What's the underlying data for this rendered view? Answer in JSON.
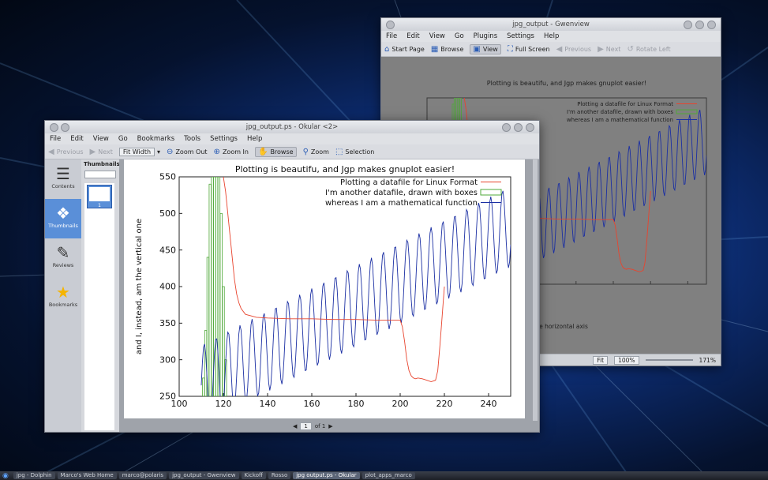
{
  "gwenview": {
    "title": "jpg_output - Gwenview",
    "menu": [
      "File",
      "Edit",
      "View",
      "Go",
      "Plugins",
      "Settings",
      "Help"
    ],
    "toolbar": [
      {
        "label": "Start Page",
        "icon": "home-icon"
      },
      {
        "label": "Browse",
        "icon": "grid-icon"
      },
      {
        "label": "View",
        "icon": "image-icon"
      },
      {
        "label": "Full Screen",
        "icon": "fullscreen-icon"
      },
      {
        "label": "Previous",
        "icon": "previous-icon"
      },
      {
        "label": "Next",
        "icon": "next-icon"
      },
      {
        "label": "Rotate Left",
        "icon": "rotate-left-icon"
      }
    ],
    "status": {
      "fit": "Fit",
      "zoom_value": "100%",
      "zoom_pct": "171%"
    },
    "xlabel_fragment": "am the horizontal axis"
  },
  "okular": {
    "title": "jpg_output.ps - Okular <2>",
    "menu": [
      "File",
      "Edit",
      "View",
      "Go",
      "Bookmarks",
      "Tools",
      "Settings",
      "Help"
    ],
    "toolbar": {
      "previous": "Previous",
      "next": "Next",
      "fit_width": "Fit Width",
      "zoom_out": "Zoom Out",
      "zoom_in": "Zoom In",
      "browse": "Browse",
      "zoom": "Zoom",
      "selection": "Selection"
    },
    "sidebar": [
      "Contents",
      "Thumbnails",
      "Reviews",
      "Bookmarks"
    ],
    "thumbnails_title": "Thumbnails",
    "thumb_page": "1",
    "page_nav": {
      "current": "1",
      "of_label": "of 1"
    }
  },
  "taskbar": [
    {
      "label": "jpg - Dolphin"
    },
    {
      "label": "Marco's Web Home"
    },
    {
      "label": "marco@polaris"
    },
    {
      "label": "jpg_output - Gwenview"
    },
    {
      "label": "Kickoff"
    },
    {
      "label": "Rosso"
    },
    {
      "label": "jpg output.ps - Okular",
      "active": true
    },
    {
      "label": "plot_apps_marco"
    }
  ],
  "chart_data": {
    "type": "line",
    "title": "Plotting is beautifu, and Jgp makes gnuplot easier!",
    "ylabel": "and I, instead, am the vertical one",
    "xlim": [
      100,
      250
    ],
    "ylim": [
      250,
      550
    ],
    "xticks": [
      100,
      120,
      140,
      160,
      180,
      200,
      220,
      240
    ],
    "yticks": [
      250,
      300,
      350,
      400,
      450,
      500,
      550
    ],
    "colors": {
      "datafile": "#e8442e",
      "boxes": "#4fa838",
      "function": "#1b2fa3"
    },
    "series": [
      {
        "name": "Plotting a datafile for Linux Format",
        "x": [
          120,
          121,
          122,
          123,
          124,
          125,
          126,
          127,
          128,
          130,
          135,
          140,
          150,
          160,
          170,
          180,
          190,
          200,
          201,
          202,
          203,
          204,
          205,
          206,
          207,
          208,
          210,
          212,
          214,
          216,
          217,
          218,
          219,
          220
        ],
        "y": [
          550,
          530,
          500,
          470,
          440,
          410,
          390,
          378,
          370,
          362,
          358,
          357,
          356,
          356,
          355,
          355,
          354,
          354,
          345,
          325,
          300,
          285,
          278,
          275,
          274,
          275,
          274,
          272,
          270,
          272,
          285,
          320,
          360,
          400
        ]
      },
      {
        "name": "I'm another datafile, drawn with boxes",
        "type": "bar",
        "x": [
          110,
          111,
          112,
          113,
          114,
          115,
          116,
          117,
          118,
          119,
          120,
          121,
          122
        ],
        "y": [
          250,
          275,
          340,
          440,
          540,
          550,
          550,
          550,
          550,
          500,
          400,
          300,
          250
        ]
      },
      {
        "name": "whereas I am a mathematical function",
        "formula_note": "oscillating ramp",
        "x_start": 110,
        "x_end": 250
      }
    ]
  }
}
